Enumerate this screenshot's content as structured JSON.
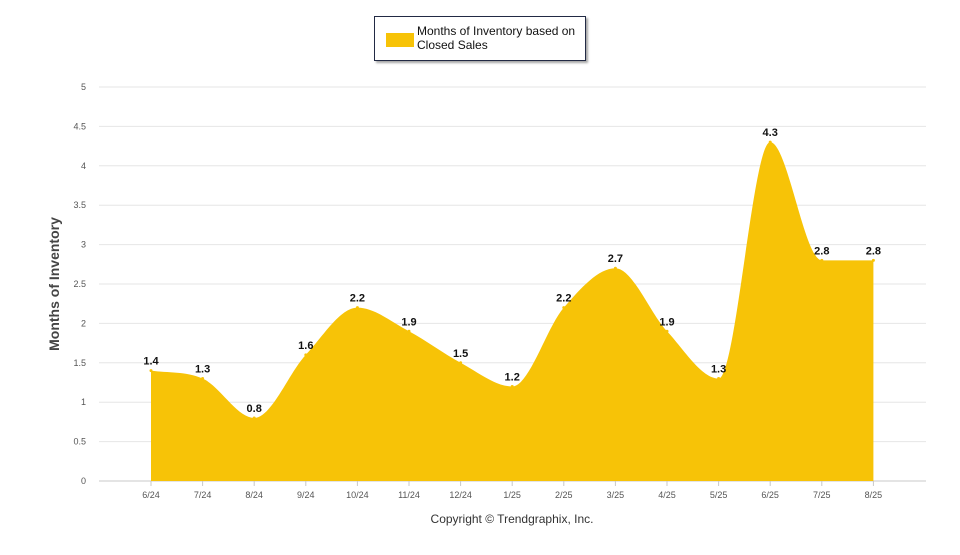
{
  "chart_data": {
    "type": "area",
    "categories": [
      "6/24",
      "7/24",
      "8/24",
      "9/24",
      "10/24",
      "11/24",
      "12/24",
      "1/25",
      "2/25",
      "3/25",
      "4/25",
      "5/25",
      "6/25",
      "7/25",
      "8/25"
    ],
    "series": [
      {
        "name": "Months of Inventory based on Closed Sales",
        "values": [
          1.4,
          1.3,
          0.8,
          1.6,
          2.2,
          1.9,
          1.5,
          1.2,
          2.2,
          2.7,
          1.9,
          1.3,
          4.3,
          2.8,
          2.8
        ],
        "color": "#f7c307"
      }
    ],
    "ylabel": "Months of Inventory",
    "ylim": [
      0,
      5
    ],
    "yticks": [
      "0",
      "0.5",
      "1",
      "1.5",
      "2",
      "2.5",
      "3",
      "3.5",
      "4",
      "4.5",
      "5"
    ],
    "grid": true,
    "legend_position": "top-center",
    "data_labels": [
      "1.4",
      "1.3",
      "0.8",
      "1.6",
      "2.2",
      "1.9",
      "1.5",
      "1.2",
      "2.2",
      "2.7",
      "1.9",
      "1.3",
      "4.3",
      "2.8",
      "2.8"
    ]
  },
  "footer": {
    "copyright": "Copyright © Trendgraphix, Inc."
  },
  "colors": {
    "area_fill": "#f7c307",
    "gridline": "#e6e6e6",
    "axis_text": "#555555"
  }
}
